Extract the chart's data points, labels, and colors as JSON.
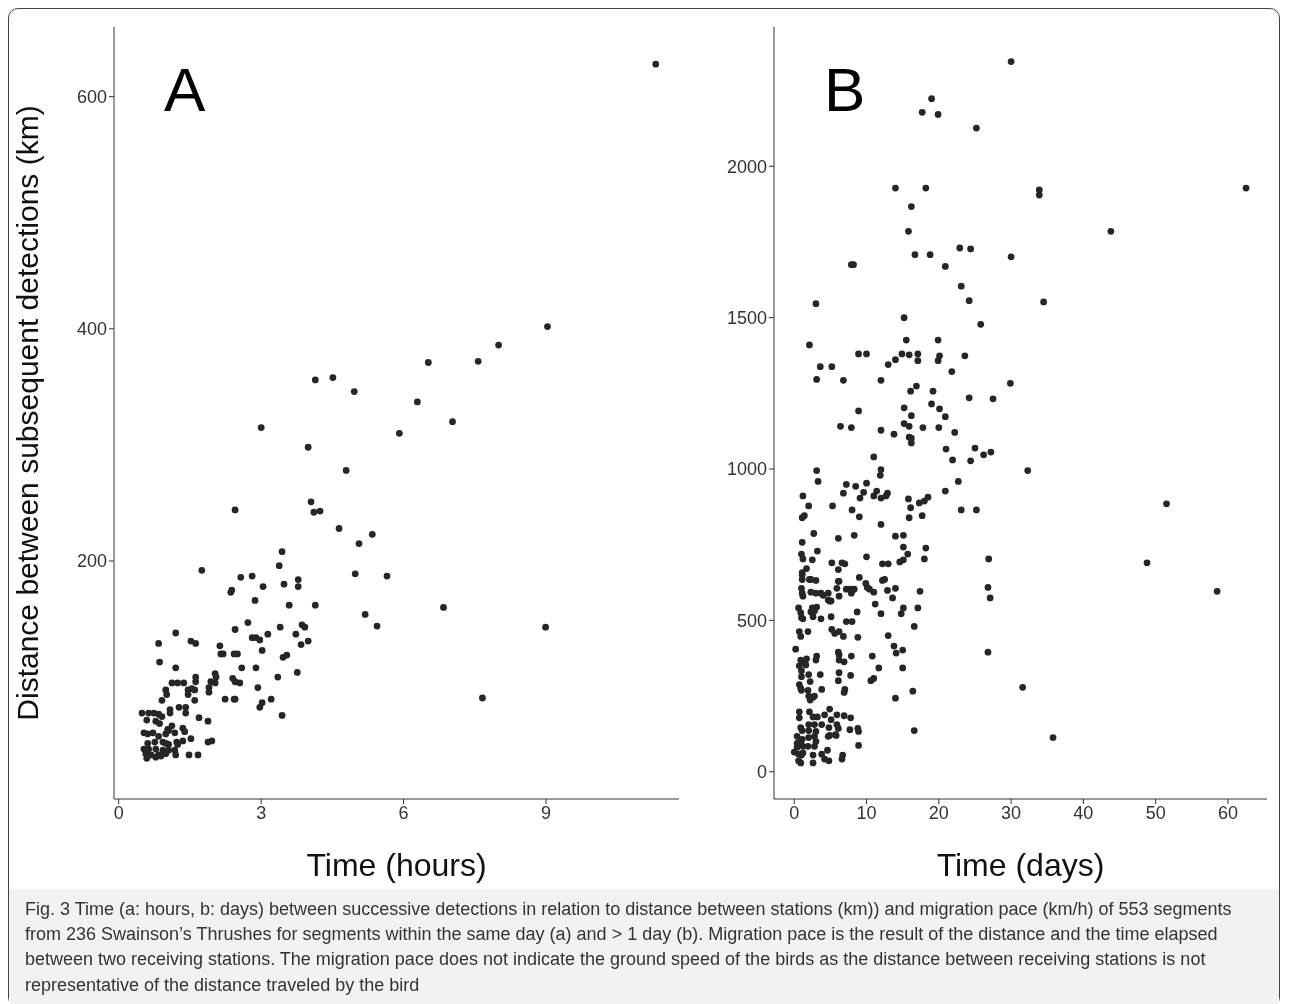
{
  "chart_data": [
    {
      "type": "scatter",
      "xlabel": "Time (hours)",
      "ylabel": "Distance between subsequent detections (km)",
      "color": "#262626",
      "marker": "circle",
      "xlim": [
        -0.1,
        11.8
      ],
      "ylim": [
        -5,
        660
      ],
      "xticks": [
        0,
        3,
        6,
        9
      ],
      "yticks": [
        200,
        400,
        600
      ],
      "annotations": [
        "A",
        "Fig. 3 Time (a: hours, b: days) between successive detections in relation to distance between stations (km)) and migration pace (km/h) of 553 segments from 236 Swainson’s Thrushes for segments within the same day (a) and > 1 day (b). Migration pace is the result of the distance and the time elapsed between two receiving stations. The migration pace does not indicate the ground speed of the birds as the distance between receiving stations is not representative of the distance traveled by the bird"
      ],
      "x": [
        11.31,
        9.03,
        8.0,
        7.57,
        6.52,
        6.29,
        7.03,
        5.91,
        4.14,
        4.51,
        4.96,
        3.0,
        3.99,
        4.79,
        2.45,
        4.05,
        4.11,
        4.24,
        4.64,
        5.06,
        5.34,
        4.98,
        5.65,
        5.19,
        5.44,
        6.84,
        8.99,
        7.66,
        1.75,
        3.44,
        3.38,
        2.57,
        2.81,
        3.78,
        3.78,
        3.48,
        3.04,
        2.38,
        2.36,
        2.87,
        3.59,
        4.14,
        2.72,
        3.4,
        3.86,
        3.92,
        2.45,
        1.2,
        3.73,
        3.14,
        0.84,
        1.52,
        1.62,
        2.81,
        2.89,
        2.97,
        3.99,
        3.84,
        2.13,
        3.02,
        2.15,
        2.2,
        2.43,
        2.5,
        3.46,
        3.54,
        0.86,
        1.2,
        2.59,
        2.89,
        3.76,
        2.03,
        2.05,
        1.62,
        1.62,
        3.35,
        1.12,
        1.24,
        1.37,
        2.4,
        2.45,
        1.94,
        2.03,
        2.55,
        1.9,
        1.9,
        1.54,
        1.6,
        2.93,
        0.99,
        1.01,
        1.46,
        1.46,
        0.91,
        1.6,
        2.24,
        2.43,
        2.45,
        3.21,
        3.02,
        2.97,
        3.44,
        1.27,
        1.41,
        1.08,
        1.08,
        1.41,
        1.69,
        1.88,
        0.49,
        0.63,
        0.74,
        0.84,
        0.91,
        0.59,
        0.78,
        0.86,
        1.12,
        1.03,
        1.35,
        1.39,
        1.18,
        0.53,
        0.61,
        0.72,
        0.84,
        0.99,
        1.05,
        1.52,
        1.35,
        1.22,
        1.24,
        1.88,
        1.96,
        0.61,
        0.76,
        0.93,
        0.99,
        1.05,
        0.53,
        0.63,
        0.78,
        0.93,
        1.05,
        1.18,
        0.57,
        0.68,
        0.84,
        0.99,
        0.59,
        0.78,
        0.89,
        1.2,
        1.48,
        1.67
      ],
      "values": [
        628,
        402,
        386,
        372,
        371,
        337,
        320,
        310,
        356,
        358,
        346,
        315,
        298,
        278,
        244,
        251,
        242,
        243,
        228,
        215,
        223,
        189,
        187,
        154,
        144,
        160,
        143,
        82,
        192,
        208,
        196,
        186,
        187,
        184,
        178,
        180,
        178,
        175,
        173,
        166,
        162,
        162,
        147,
        143,
        145,
        143,
        141,
        138,
        137,
        137,
        129,
        131,
        129,
        134,
        134,
        132,
        131,
        128,
        127,
        123,
        120,
        120,
        120,
        120,
        117,
        119,
        113,
        108,
        108,
        108,
        104,
        103,
        100,
        100,
        96,
        100,
        95,
        95,
        95,
        99,
        96,
        96,
        95,
        95,
        91,
        87,
        90,
        89,
        91,
        89,
        85,
        89,
        85,
        80,
        80,
        81,
        81,
        81,
        81,
        78,
        74,
        67,
        74,
        74,
        72,
        69,
        69,
        65,
        62,
        69,
        69,
        69,
        68,
        66,
        63,
        62,
        60,
        58,
        55,
        56,
        53,
        52,
        52,
        51,
        52,
        49,
        51,
        54,
        47,
        45,
        44,
        42,
        44,
        45,
        43,
        44,
        44,
        43,
        42,
        38,
        38,
        38,
        37,
        37,
        37,
        34,
        33,
        33,
        34,
        30,
        31,
        32,
        33,
        33,
        33
      ]
    },
    {
      "type": "scatter",
      "xlabel": "Time (days)",
      "color": "#262626",
      "marker": "circle",
      "xlim": [
        -2.8,
        65.4
      ],
      "ylim": [
        -90,
        2460
      ],
      "xticks": [
        0,
        10,
        20,
        30,
        40,
        50,
        60
      ],
      "yticks": [
        0,
        500,
        1000,
        1500,
        2000
      ],
      "annotations": [
        "B"
      ],
      "x": [
        30.0,
        19.0,
        17.7,
        19.9,
        25.2,
        14.0,
        18.2,
        33.9,
        33.9,
        62.5,
        16.2,
        15.8,
        43.8,
        16.7,
        18.8,
        30.0,
        20.9,
        7.9,
        8.2,
        22.9,
        24.4,
        23.1,
        24.2,
        34.5,
        3.0,
        25.8,
        15.2,
        2.1,
        3.6,
        5.2,
        3.1,
        6.8,
        8.9,
        10.0,
        15.5,
        19.9,
        14.9,
        15.9,
        17.1,
        14.0,
        17.1,
        19.9,
        13.0,
        20.1,
        23.6,
        21.8,
        29.9,
        12.0,
        16.1,
        16.9,
        19.2,
        24.2,
        27.5,
        19.0,
        20.1,
        8.9,
        15.2,
        16.2,
        6.4,
        7.9,
        12.0,
        13.8,
        15.2,
        15.9,
        17.8,
        20.0,
        20.9,
        22.2,
        15.9,
        16.2,
        16.2,
        21.0,
        25.0,
        27.2,
        21.9,
        24.4,
        26.2,
        32.3,
        22.7,
        20.9,
        17.3,
        18.0,
        18.5,
        17.7,
        23.1,
        25.2,
        18.2,
        51.5,
        48.8,
        58.5,
        31.6,
        35.8,
        16.6,
        26.9,
        26.8,
        27.1,
        26.8,
        11.0,
        12.0,
        11.9,
        3.1,
        3.3,
        7.2,
        8.5,
        10.0,
        6.8,
        9.6,
        9.1,
        11.0,
        11.4,
        12.0,
        12.7,
        12.9,
        1.2,
        2.0,
        5.3,
        8.0,
        9.0,
        1.1,
        1.4,
        15.8,
        16.1,
        15.9,
        12.0,
        2.7,
        6.1,
        8.3,
        1.1,
        14.0,
        15.1,
        15.1,
        15.7,
        14.6,
        15.1,
        18.0,
        1.0,
        1.2,
        3.2,
        2.5,
        10.0,
        5.2,
        6.6,
        7.0,
        6.1,
        12.2,
        13.0,
        1.7,
        1.1,
        1.1,
        9.0,
        12.2,
        12.5,
        1.1,
        2.1,
        2.3,
        3.0,
        6.1,
        6.2,
        9.9,
        10.1,
        10.4,
        11.0,
        12.9,
        14.0,
        17.4,
        1.0,
        1.1,
        1.2,
        2.3,
        3.0,
        3.7,
        4.0,
        4.7,
        4.7,
        4.9,
        5.1,
        5.9,
        6.2,
        7.2,
        7.8,
        8.0,
        8.3,
        7.9,
        13.6,
        11.2,
        15.1,
        17.1,
        0.6,
        0.9,
        1.0,
        1.2,
        2.5,
        3.1,
        2.8,
        2.3,
        2.6,
        3.7,
        5.1,
        8.7,
        7.2,
        8.0,
        12.0,
        14.8,
        16.6,
        0.7,
        0.9,
        1.9,
        5.2,
        5.6,
        6.2,
        6.8,
        8.8,
        13.0,
        0.2,
        13.8,
        14.1,
        15.0,
        0.9,
        1.1,
        1.7,
        1.6,
        3.1,
        3.0,
        6.1,
        6.2,
        6.2,
        6.9,
        7.9,
        10.8,
        11.7,
        15.0,
        0.7,
        1.0,
        2.0,
        2.2,
        3.6,
        1.0,
        6.2,
        6.1,
        7.8,
        10.6,
        11.0,
        0.7,
        0.9,
        1.0,
        1.9,
        2.0,
        2.2,
        2.6,
        2.8,
        3.8,
        7.0,
        6.9,
        16.4,
        14.0,
        0.7,
        0.7,
        2.1,
        2.6,
        3.2,
        4.2,
        4.9,
        5.1,
        5.9,
        6.9,
        7.8,
        0.9,
        1.1,
        2.0,
        2.0,
        2.8,
        3.0,
        3.8,
        4.8,
        5.9,
        6.1,
        5.7,
        5.8,
        7.7,
        8.8,
        8.9,
        8.9,
        0.4,
        0.6,
        1.1,
        2.0,
        2.8,
        3.0,
        4.7,
        4.9,
        0.4,
        0.4,
        0.9,
        1.2,
        1.9,
        2.8,
        3.8,
        4.6,
        0.0,
        0.6,
        1.0,
        1.2,
        2.6,
        4.2,
        4.8,
        6.7,
        6.6,
        0.6,
        0.9,
        2.6
      ],
      "values": [
        2346,
        2223,
        2178,
        2171,
        2126,
        1928,
        1928,
        1922,
        1905,
        1928,
        1867,
        1785,
        1785,
        1708,
        1708,
        1701,
        1669,
        1675,
        1675,
        1730,
        1727,
        1604,
        1556,
        1552,
        1546,
        1478,
        1500,
        1410,
        1338,
        1338,
        1296,
        1293,
        1380,
        1380,
        1426,
        1426,
        1380,
        1377,
        1380,
        1361,
        1358,
        1358,
        1345,
        1374,
        1374,
        1322,
        1283,
        1293,
        1257,
        1274,
        1257,
        1235,
        1232,
        1215,
        1199,
        1192,
        1202,
        1176,
        1141,
        1137,
        1128,
        1115,
        1150,
        1141,
        1137,
        1137,
        1173,
        1121,
        1105,
        1102,
        1086,
        1066,
        1069,
        1056,
        1030,
        1027,
        1047,
        995,
        959,
        927,
        888,
        894,
        907,
        846,
        865,
        865,
        739,
        885,
        690,
        596,
        279,
        113,
        136,
        703,
        609,
        574,
        395,
        1040,
        998,
        979,
        995,
        959,
        949,
        943,
        953,
        920,
        923,
        904,
        911,
        927,
        904,
        911,
        920,
        911,
        878,
        878,
        865,
        842,
        839,
        846,
        901,
        872,
        839,
        817,
        787,
        771,
        781,
        758,
        778,
        781,
        742,
        719,
        693,
        700,
        703,
        719,
        703,
        729,
        700,
        710,
        690,
        690,
        687,
        668,
        687,
        687,
        671,
        658,
        651,
        642,
        632,
        635,
        635,
        635,
        635,
        632,
        629,
        629,
        622,
        609,
        603,
        593,
        599,
        606,
        596,
        606,
        590,
        580,
        593,
        590,
        590,
        583,
        590,
        567,
        564,
        564,
        606,
        580,
        603,
        603,
        599,
        603,
        590,
        574,
        554,
        541,
        541,
        541,
        525,
        509,
        505,
        541,
        544,
        531,
        528,
        512,
        505,
        512,
        528,
        496,
        496,
        522,
        522,
        480,
        463,
        447,
        463,
        470,
        457,
        463,
        447,
        444,
        450,
        405,
        415,
        392,
        402,
        369,
        363,
        373,
        353,
        382,
        369,
        395,
        386,
        369,
        363,
        382,
        382,
        343,
        343,
        350,
        334,
        321,
        298,
        321,
        314,
        327,
        301,
        318,
        301,
        308,
        288,
        275,
        269,
        269,
        250,
        237,
        246,
        250,
        272,
        272,
        262,
        266,
        243,
        198,
        178,
        198,
        181,
        181,
        188,
        207,
        172,
        188,
        185,
        178,
        146,
        136,
        156,
        136,
        156,
        133,
        156,
        146,
        156,
        143,
        123,
        120,
        139,
        143,
        133,
        87,
        117,
        97,
        107,
        113,
        117,
        100,
        117,
        120,
        94,
        81,
        94,
        84,
        84,
        84,
        58,
        71,
        65,
        58,
        55,
        62,
        55,
        42,
        36,
        55,
        42,
        36,
        29,
        29
      ]
    }
  ]
}
